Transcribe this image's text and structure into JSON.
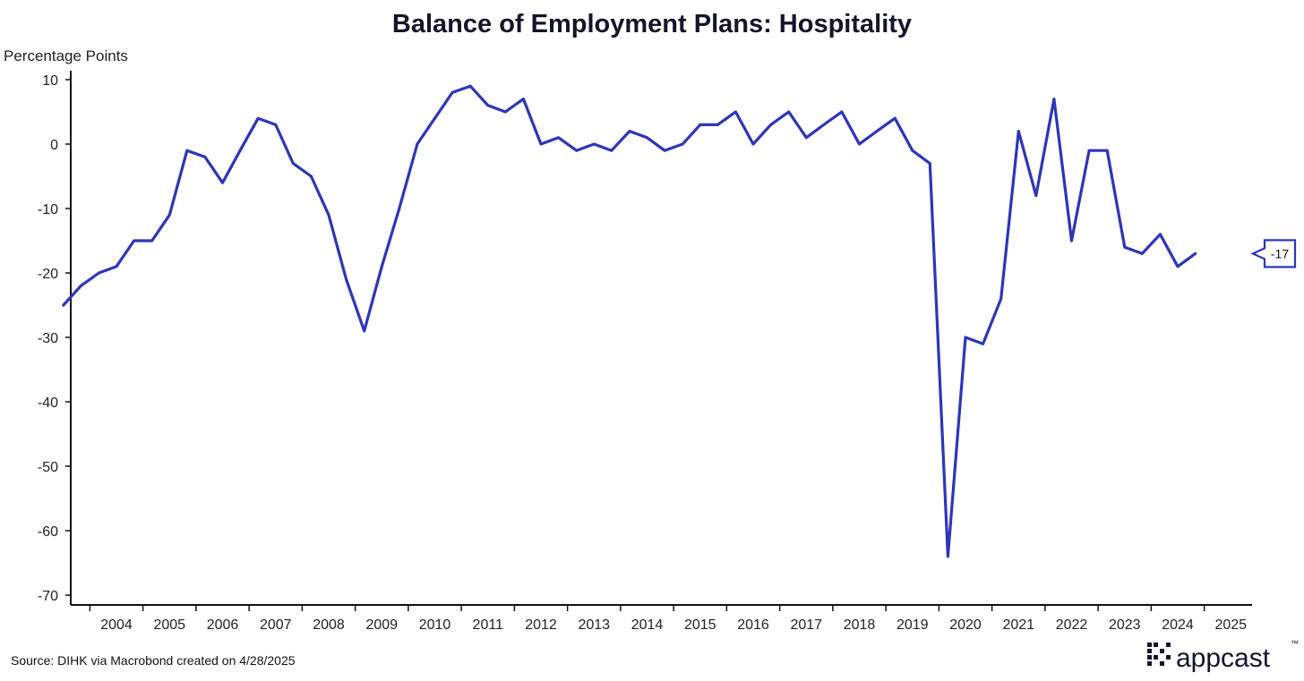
{
  "chart_data": {
    "type": "line",
    "title": "Balance of Employment Plans: Hospitality",
    "ylabel": "Percentage Points",
    "xlabel": "",
    "ylim": [
      -70,
      10
    ],
    "yticks": [
      10,
      0,
      -10,
      -20,
      -30,
      -40,
      -50,
      -60,
      -70
    ],
    "xticks": [
      "2004",
      "2005",
      "2006",
      "2007",
      "2008",
      "2009",
      "2010",
      "2011",
      "2012",
      "2013",
      "2014",
      "2015",
      "2016",
      "2017",
      "2018",
      "2019",
      "2020",
      "2021",
      "2022",
      "2023",
      "2024",
      "2025"
    ],
    "xlim": [
      2003.3,
      2025.6
    ],
    "grid": false,
    "series": [
      {
        "name": "",
        "color": "#2e35b8",
        "x": [
          2003.5,
          2003.83,
          2004.17,
          2004.5,
          2004.83,
          2005.17,
          2005.5,
          2005.83,
          2006.17,
          2006.5,
          2006.83,
          2007.17,
          2007.5,
          2007.83,
          2008.17,
          2008.5,
          2008.83,
          2009.17,
          2009.5,
          2009.83,
          2010.17,
          2010.5,
          2010.83,
          2011.17,
          2011.5,
          2011.83,
          2012.17,
          2012.5,
          2012.83,
          2013.17,
          2013.5,
          2013.83,
          2014.17,
          2014.5,
          2014.83,
          2015.17,
          2015.5,
          2015.83,
          2016.17,
          2016.5,
          2016.83,
          2017.17,
          2017.5,
          2017.83,
          2018.17,
          2018.5,
          2018.83,
          2019.17,
          2019.5,
          2019.83,
          2020.17,
          2020.5,
          2020.83,
          2021.17,
          2021.5,
          2021.83,
          2022.17,
          2022.5,
          2022.83,
          2023.17,
          2023.5,
          2023.83,
          2024.17,
          2024.5,
          2024.83
        ],
        "y": [
          -25,
          -22,
          -20,
          -19,
          -15,
          -15,
          -11,
          -1,
          -2,
          -6,
          -1,
          4,
          3,
          -3,
          -5,
          -11,
          -21,
          -29,
          -19,
          -10,
          0,
          4,
          8,
          9,
          6,
          5,
          7,
          0,
          1,
          -1,
          0,
          -1,
          2,
          1,
          -1,
          0,
          3,
          3,
          5,
          0,
          3,
          5,
          1,
          3,
          5,
          0,
          2,
          4,
          -1,
          -3,
          -64,
          -30,
          -31,
          -24,
          2,
          -8,
          7,
          -15,
          -1,
          -1,
          -16,
          -17,
          -14,
          -19,
          -17
        ]
      }
    ],
    "annotations": [
      {
        "text": "-17",
        "y": -17
      }
    ],
    "source": "Source: DIHK via Macrobond created on 4/28/2025"
  },
  "brand": {
    "name": "appcast",
    "trademark": "™"
  }
}
